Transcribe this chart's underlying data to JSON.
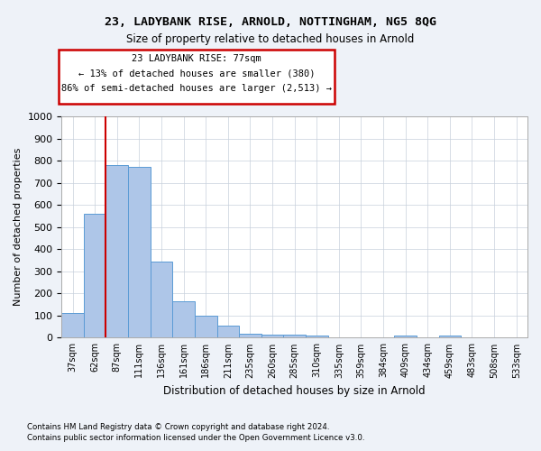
{
  "title1": "23, LADYBANK RISE, ARNOLD, NOTTINGHAM, NG5 8QG",
  "title2": "Size of property relative to detached houses in Arnold",
  "xlabel": "Distribution of detached houses by size in Arnold",
  "ylabel": "Number of detached properties",
  "footer1": "Contains HM Land Registry data © Crown copyright and database right 2024.",
  "footer2": "Contains public sector information licensed under the Open Government Licence v3.0.",
  "annotation_line1": "23 LADYBANK RISE: 77sqm",
  "annotation_line2": "← 13% of detached houses are smaller (380)",
  "annotation_line3": "86% of semi-detached houses are larger (2,513) →",
  "bar_color": "#aec6e8",
  "bar_edge_color": "#5b9bd5",
  "vline_color": "#cc0000",
  "vline_x": 1.5,
  "categories": [
    "37sqm",
    "62sqm",
    "87sqm",
    "111sqm",
    "136sqm",
    "161sqm",
    "186sqm",
    "211sqm",
    "235sqm",
    "260sqm",
    "285sqm",
    "310sqm",
    "335sqm",
    "359sqm",
    "384sqm",
    "409sqm",
    "434sqm",
    "459sqm",
    "483sqm",
    "508sqm",
    "533sqm"
  ],
  "values": [
    112,
    560,
    778,
    770,
    343,
    163,
    98,
    53,
    18,
    15,
    15,
    10,
    0,
    0,
    0,
    8,
    0,
    8,
    0,
    0,
    0
  ],
  "ylim": [
    0,
    1000
  ],
  "yticks": [
    0,
    100,
    200,
    300,
    400,
    500,
    600,
    700,
    800,
    900,
    1000
  ],
  "bg_color": "#eef2f8",
  "plot_bg_color": "#ffffff",
  "grid_color": "#c8d0dc"
}
